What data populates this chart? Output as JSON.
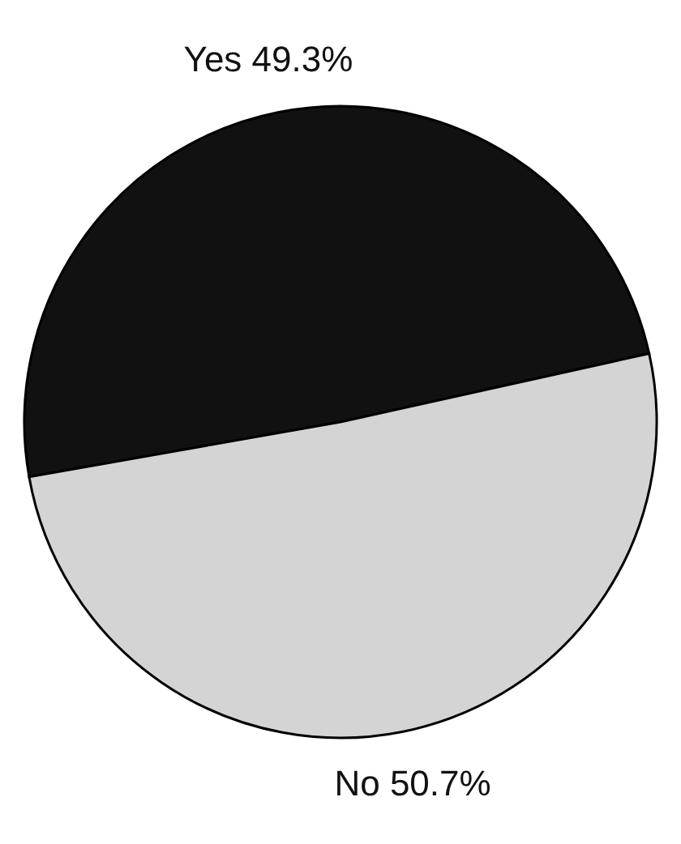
{
  "chart_data": {
    "type": "pie",
    "categories": [
      "Yes",
      "No"
    ],
    "values": [
      49.3,
      50.7
    ],
    "colors": [
      "#111111",
      "#d4d4d4"
    ],
    "value_labels": [
      "49.3%",
      "50.7%"
    ]
  }
}
